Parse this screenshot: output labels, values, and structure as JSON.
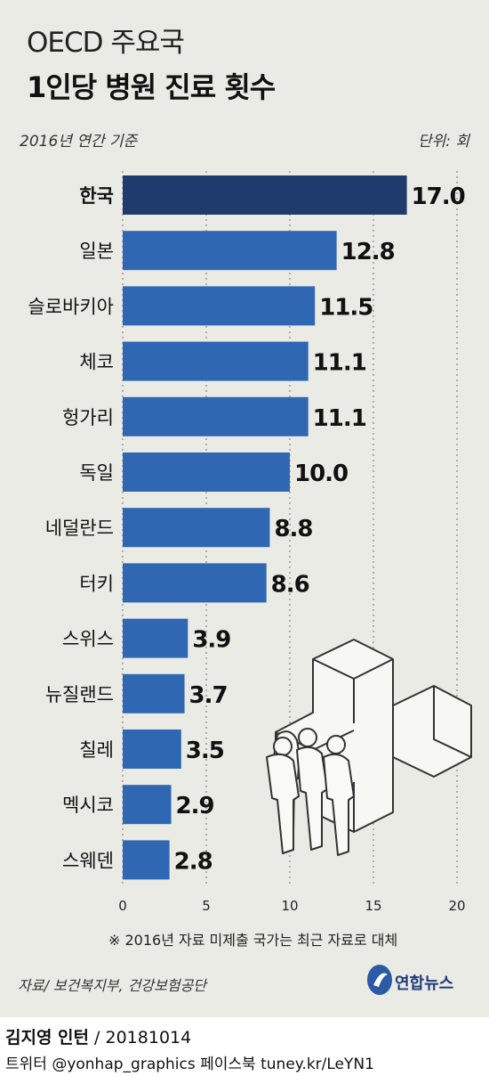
{
  "header": {
    "title_line1": "OECD 주요국",
    "title_line2": "1인당 병원 진료 횟수",
    "subtitle": "2016년 연간 기준",
    "unit": "단위: 회"
  },
  "chart_data": {
    "type": "bar",
    "orientation": "horizontal",
    "categories": [
      "한국",
      "일본",
      "슬로바키아",
      "체코",
      "헝가리",
      "독일",
      "네덜란드",
      "터키",
      "스위스",
      "뉴질랜드",
      "칠레",
      "멕시코",
      "스웨덴"
    ],
    "values": [
      17.0,
      12.8,
      11.5,
      11.1,
      11.1,
      10.0,
      8.8,
      8.6,
      3.9,
      3.7,
      3.5,
      2.9,
      2.8
    ],
    "value_labels": [
      "17.0",
      "12.8",
      "11.5",
      "11.1",
      "11.1",
      "10.0",
      "8.8",
      "8.6",
      "3.9",
      "3.7",
      "3.5",
      "2.9",
      "2.8"
    ],
    "xlim": [
      0,
      20
    ],
    "xticks": [
      0,
      5,
      10,
      15,
      20
    ],
    "xtick_labels": [
      "0",
      "5",
      "10",
      "15",
      "20"
    ],
    "grid": "vertical dotted",
    "highlight_index": 0,
    "colors": {
      "highlight": "#1f3a6c",
      "bar": "#2f67b3"
    }
  },
  "footnote": "※ 2016년 자료 미제출 국가는 최근 자료로 대체",
  "source": "자료/ 보건복지부, 건강보험공단",
  "logo": {
    "text": "연합뉴스",
    "color": "#1d3d7a"
  },
  "credit": {
    "author": "김지영 인턴",
    "date": " / 20181014",
    "social": "트위터 @yonhap_graphics  페이스북 tuney.kr/LeYN1"
  }
}
